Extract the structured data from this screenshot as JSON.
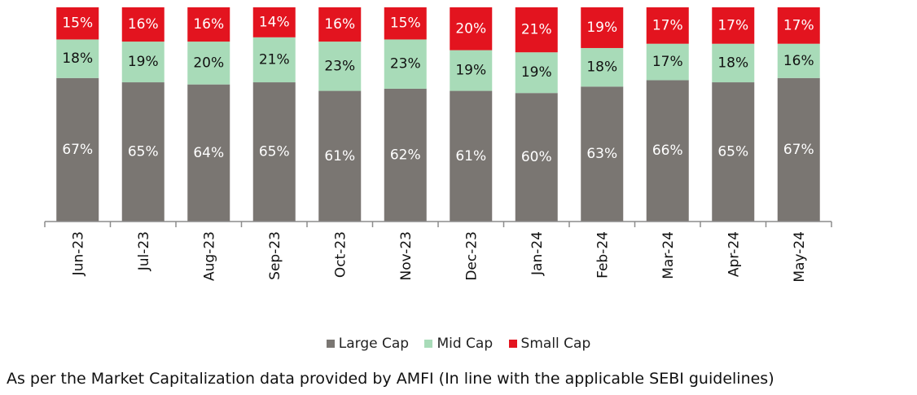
{
  "chart_data": {
    "type": "bar",
    "stacked": true,
    "categories": [
      "Jun-23",
      "Jul-23",
      "Aug-23",
      "Sep-23",
      "Oct-23",
      "Nov-23",
      "Dec-23",
      "Jan-24",
      "Feb-24",
      "Mar-24",
      "Apr-24",
      "May-24"
    ],
    "series": [
      {
        "name": "Large Cap",
        "color": "#7a7672",
        "label_color": "#ffffff",
        "values": [
          67,
          65,
          64,
          65,
          61,
          62,
          61,
          60,
          63,
          66,
          65,
          67
        ]
      },
      {
        "name": "Mid Cap",
        "color": "#a8dbb8",
        "label_color": "#111111",
        "values": [
          18,
          19,
          20,
          21,
          23,
          23,
          19,
          19,
          18,
          17,
          18,
          16
        ]
      },
      {
        "name": "Small Cap",
        "color": "#e3141f",
        "label_color": "#ffffff",
        "values": [
          15,
          16,
          16,
          14,
          16,
          15,
          20,
          21,
          19,
          17,
          17,
          17
        ]
      }
    ],
    "value_suffix": "%",
    "ylim": [
      0,
      100
    ],
    "grid": false,
    "legend_position": "bottom",
    "xlabel": "",
    "ylabel": "",
    "title": ""
  },
  "note": "As per the Market Capitalization data provided by AMFI (In line with the applicable SEBI guidelines)"
}
